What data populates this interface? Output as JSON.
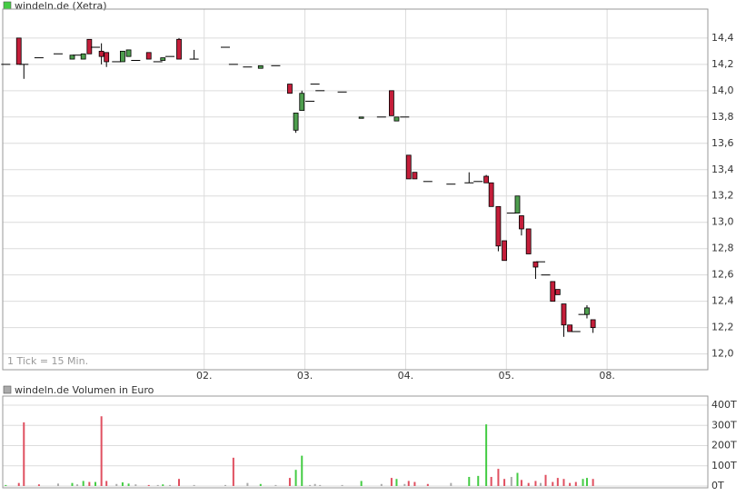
{
  "chart_data": [
    {
      "type": "candlestick",
      "title": "windeln.de (Xetra)",
      "annotation": "1 Tick = 15 Min.",
      "legend_color": "#44cc44",
      "up_color": "#4e9e4e",
      "down_color": "#c41e3a",
      "x": [
        -0.97,
        -0.84,
        -0.79,
        -0.64,
        -0.45,
        -0.31,
        -0.26,
        -0.2,
        -0.14,
        -0.08,
        -0.02,
        0.03,
        0.13,
        0.19,
        0.25,
        0.32,
        0.45,
        0.54,
        0.59,
        0.66,
        0.75,
        0.9,
        1.21,
        1.29,
        1.43,
        1.56,
        1.71,
        1.85,
        1.91,
        1.97,
        2.05,
        2.1,
        2.15,
        2.37,
        2.56,
        2.76,
        2.86,
        2.91,
        2.99,
        3.03,
        3.09,
        3.22,
        3.45,
        3.63,
        3.72,
        3.8,
        3.85,
        3.92,
        3.98,
        4.05,
        4.11,
        4.15,
        4.22,
        4.29,
        4.34,
        4.39,
        4.46,
        4.51,
        4.57,
        4.63,
        4.69,
        4.76,
        4.8,
        4.86
      ],
      "open": [
        14.2,
        14.4,
        14.2,
        14.25,
        14.28,
        14.24,
        14.27,
        14.24,
        14.39,
        14.33,
        14.3,
        14.29,
        14.22,
        14.22,
        14.26,
        14.23,
        14.29,
        14.22,
        14.23,
        14.26,
        14.39,
        14.24,
        14.33,
        14.2,
        14.18,
        14.17,
        14.19,
        14.05,
        13.7,
        13.85,
        13.92,
        14.05,
        14.0,
        13.99,
        13.79,
        13.8,
        14.0,
        13.77,
        13.8,
        13.51,
        13.38,
        13.31,
        13.29,
        13.3,
        13.31,
        13.35,
        13.3,
        13.12,
        12.86,
        13.07,
        13.07,
        13.05,
        12.95,
        12.7,
        12.7,
        12.6,
        12.55,
        12.49,
        12.38,
        12.22,
        12.17,
        12.3,
        12.3,
        12.26
      ],
      "high": [
        14.2,
        14.4,
        14.2,
        14.25,
        14.28,
        14.27,
        14.27,
        14.28,
        14.39,
        14.33,
        14.36,
        14.29,
        14.22,
        14.3,
        14.31,
        14.23,
        14.29,
        14.22,
        14.25,
        14.26,
        14.4,
        14.31,
        14.33,
        14.2,
        14.18,
        14.19,
        14.19,
        14.05,
        13.83,
        14.0,
        13.92,
        14.05,
        14.0,
        13.99,
        13.8,
        13.8,
        14.0,
        13.8,
        13.8,
        13.51,
        13.38,
        13.31,
        13.29,
        13.38,
        13.31,
        13.36,
        13.3,
        13.12,
        12.86,
        13.07,
        13.2,
        13.05,
        12.95,
        12.7,
        12.7,
        12.6,
        12.55,
        12.49,
        12.38,
        12.22,
        12.17,
        12.3,
        12.37,
        12.26
      ],
      "low": [
        14.2,
        14.2,
        14.09,
        14.25,
        14.28,
        14.24,
        14.27,
        14.24,
        14.28,
        14.33,
        14.2,
        14.18,
        14.22,
        14.22,
        14.26,
        14.23,
        14.24,
        14.22,
        14.23,
        14.26,
        14.24,
        14.24,
        14.33,
        14.2,
        14.18,
        14.17,
        14.19,
        13.98,
        13.68,
        13.85,
        13.92,
        14.05,
        14.0,
        13.99,
        13.79,
        13.8,
        13.81,
        13.77,
        13.8,
        13.33,
        13.33,
        13.31,
        13.29,
        13.3,
        13.31,
        13.3,
        13.12,
        12.78,
        12.71,
        13.07,
        13.07,
        12.9,
        12.76,
        12.57,
        12.7,
        12.6,
        12.4,
        12.45,
        12.13,
        12.17,
        12.17,
        12.3,
        12.27,
        12.16
      ],
      "close": [
        14.2,
        14.2,
        14.2,
        14.25,
        14.28,
        14.27,
        14.27,
        14.28,
        14.28,
        14.33,
        14.26,
        14.22,
        14.22,
        14.3,
        14.31,
        14.23,
        14.24,
        14.22,
        14.25,
        14.26,
        14.24,
        14.24,
        14.33,
        14.2,
        14.18,
        14.19,
        14.19,
        13.98,
        13.83,
        13.98,
        13.92,
        14.05,
        14.0,
        13.99,
        13.8,
        13.8,
        13.81,
        13.8,
        13.8,
        13.33,
        13.33,
        13.31,
        13.29,
        13.3,
        13.31,
        13.3,
        13.12,
        12.82,
        12.71,
        13.07,
        13.2,
        12.95,
        12.76,
        12.66,
        12.7,
        12.6,
        12.4,
        12.45,
        12.22,
        12.17,
        12.17,
        12.3,
        12.35,
        12.2
      ],
      "xlim": [
        -1.0,
        6.0
      ],
      "xticks": [
        {
          "value": 1,
          "label": "02."
        },
        {
          "value": 2,
          "label": "03."
        },
        {
          "value": 3,
          "label": "04."
        },
        {
          "value": 4,
          "label": "05."
        },
        {
          "value": 5,
          "label": "08."
        }
      ],
      "ylim": [
        11.88,
        14.62
      ],
      "yticks": [
        {
          "value": 12.0,
          "label": "12,0"
        },
        {
          "value": 12.2,
          "label": "12,2"
        },
        {
          "value": 12.4,
          "label": "12,4"
        },
        {
          "value": 12.6,
          "label": "12,6"
        },
        {
          "value": 12.8,
          "label": "12,8"
        },
        {
          "value": 13.0,
          "label": "13,0"
        },
        {
          "value": 13.2,
          "label": "13,2"
        },
        {
          "value": 13.4,
          "label": "13,4"
        },
        {
          "value": 13.6,
          "label": "13,6"
        },
        {
          "value": 13.8,
          "label": "13,8"
        },
        {
          "value": 14.0,
          "label": "14,0"
        },
        {
          "value": 14.2,
          "label": "14,2"
        },
        {
          "value": 14.4,
          "label": "14,4"
        }
      ],
      "grid": true
    },
    {
      "type": "bar",
      "title": "windeln.de Volumen in Euro",
      "legend_color": "#aaaaaa",
      "x": [
        -0.97,
        -0.84,
        -0.79,
        -0.64,
        -0.45,
        -0.31,
        -0.26,
        -0.2,
        -0.14,
        -0.08,
        -0.02,
        0.03,
        0.13,
        0.19,
        0.25,
        0.32,
        0.45,
        0.54,
        0.59,
        0.66,
        0.75,
        0.9,
        1.21,
        1.29,
        1.43,
        1.56,
        1.71,
        1.85,
        1.91,
        1.97,
        2.05,
        2.1,
        2.15,
        2.37,
        2.56,
        2.76,
        2.86,
        2.91,
        2.99,
        3.03,
        3.09,
        3.22,
        3.45,
        3.63,
        3.72,
        3.8,
        3.85,
        3.92,
        3.98,
        4.05,
        4.11,
        4.15,
        4.22,
        4.29,
        4.34,
        4.39,
        4.46,
        4.51,
        4.57,
        4.63,
        4.69,
        4.76,
        4.8,
        4.86
      ],
      "values": [
        5,
        15,
        315,
        8,
        12,
        15,
        8,
        25,
        20,
        20,
        345,
        25,
        10,
        18,
        12,
        8,
        5,
        5,
        8,
        5,
        35,
        5,
        5,
        140,
        15,
        10,
        5,
        40,
        80,
        150,
        5,
        10,
        5,
        5,
        25,
        10,
        40,
        35,
        10,
        25,
        20,
        10,
        15,
        45,
        50,
        305,
        45,
        85,
        35,
        45,
        65,
        30,
        15,
        25,
        15,
        55,
        20,
        40,
        35,
        15,
        20,
        35,
        40,
        35
      ],
      "colors": [
        "#44cc44",
        "#e05060",
        "#e05060",
        "#e05060",
        "#aaaaaa",
        "#44cc44",
        "#aaaaaa",
        "#44cc44",
        "#e05060",
        "#44cc44",
        "#e05060",
        "#e05060",
        "#aaaaaa",
        "#44cc44",
        "#44cc44",
        "#aaaaaa",
        "#e05060",
        "#aaaaaa",
        "#44cc44",
        "#aaaaaa",
        "#e05060",
        "#aaaaaa",
        "#aaaaaa",
        "#e05060",
        "#aaaaaa",
        "#44cc44",
        "#aaaaaa",
        "#e05060",
        "#44cc44",
        "#44cc44",
        "#aaaaaa",
        "#aaaaaa",
        "#aaaaaa",
        "#aaaaaa",
        "#44cc44",
        "#aaaaaa",
        "#e05060",
        "#44cc44",
        "#aaaaaa",
        "#e05060",
        "#e05060",
        "#e05060",
        "#aaaaaa",
        "#44cc44",
        "#44cc44",
        "#44cc44",
        "#e05060",
        "#e05060",
        "#e05060",
        "#aaaaaa",
        "#44cc44",
        "#e05060",
        "#e05060",
        "#e05060",
        "#aaaaaa",
        "#e05060",
        "#e05060",
        "#e05060",
        "#e05060",
        "#e05060",
        "#e05060",
        "#44cc44",
        "#44cc44",
        "#e05060"
      ],
      "xlim": [
        -1.0,
        6.0
      ],
      "ylim": [
        -9,
        445
      ],
      "yticks": [
        {
          "value": 0,
          "label": "0T"
        },
        {
          "value": 100,
          "label": "100T"
        },
        {
          "value": 200,
          "label": "200T"
        },
        {
          "value": 300,
          "label": "300T"
        },
        {
          "value": 400,
          "label": "400T"
        }
      ],
      "grid": true
    }
  ]
}
